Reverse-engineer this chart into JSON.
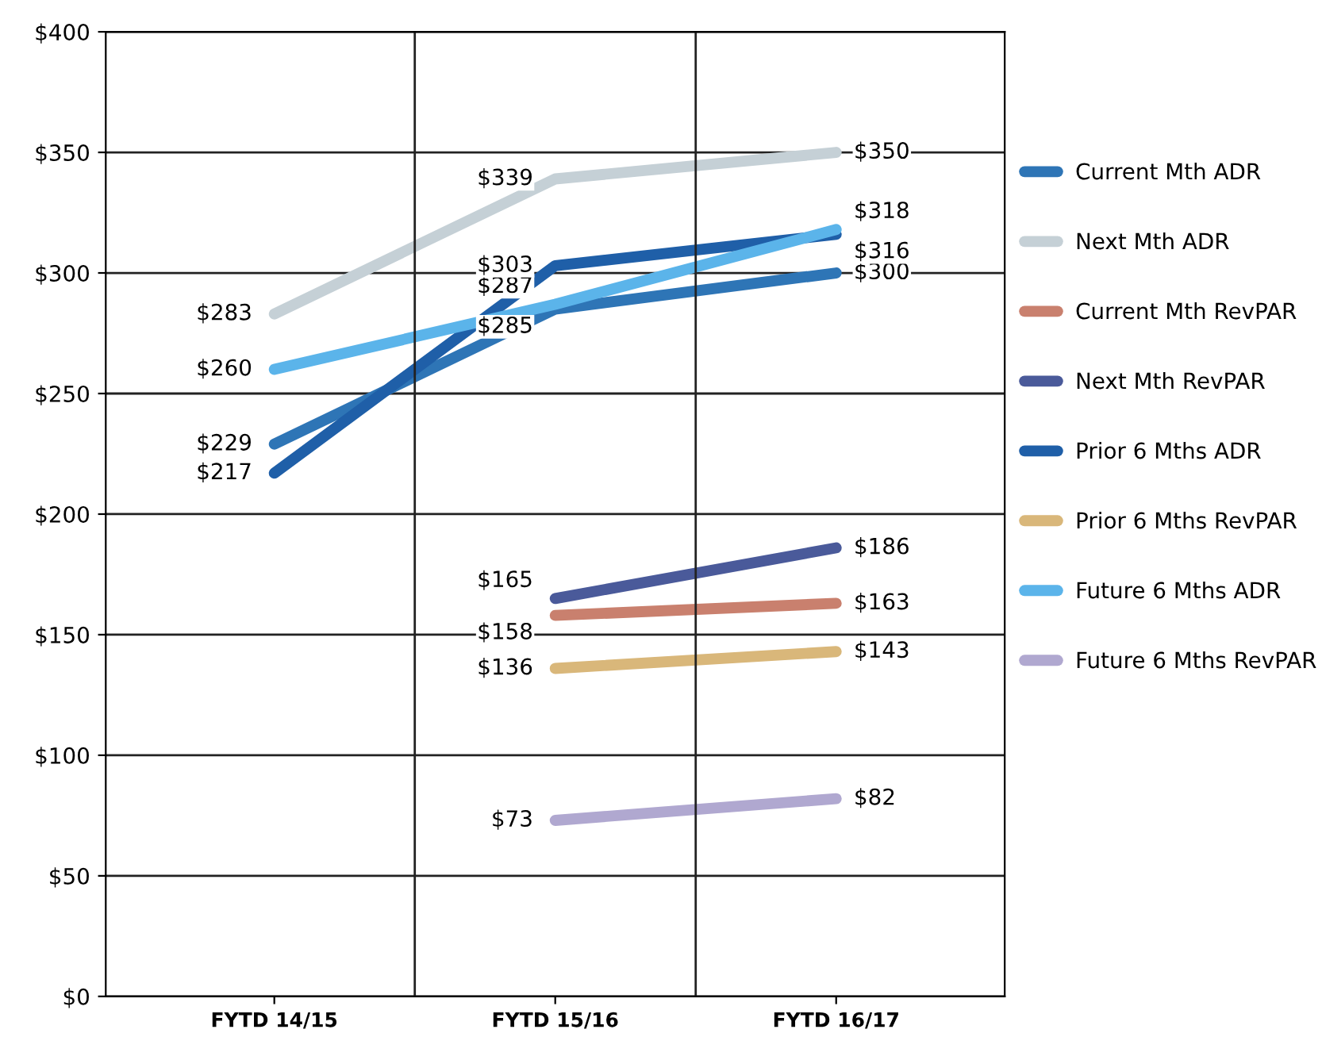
{
  "chart_data": {
    "type": "line",
    "categories": [
      "FYTD 14/15",
      "FYTD 15/16",
      "FYTD 16/17"
    ],
    "series": [
      {
        "name": "Current Mth ADR",
        "color": "#2e75b6",
        "values": [
          229,
          285,
          300
        ],
        "value_labels": [
          "$229",
          "$285",
          "$300"
        ]
      },
      {
        "name": "Next Mth ADR",
        "color": "#c5d0d6",
        "values": [
          283,
          339,
          350
        ],
        "value_labels": [
          "$283",
          "$339",
          "$350"
        ]
      },
      {
        "name": "Current Mth RevPAR",
        "color": "#c9806e",
        "values": [
          null,
          158,
          163
        ],
        "value_labels": [
          null,
          "$158",
          "$163"
        ]
      },
      {
        "name": "Next Mth RevPAR",
        "color": "#4a5a9a",
        "values": [
          null,
          165,
          186
        ],
        "value_labels": [
          null,
          "$165",
          "$186"
        ]
      },
      {
        "name": "Prior 6 Mths ADR",
        "color": "#1f5fa8",
        "values": [
          217,
          303,
          316
        ],
        "value_labels": [
          "$217",
          "$303",
          "$316"
        ]
      },
      {
        "name": "Prior 6 Mths RevPAR",
        "color": "#d9b77a",
        "values": [
          null,
          136,
          143
        ],
        "value_labels": [
          null,
          "$136",
          "$143"
        ]
      },
      {
        "name": "Future 6 Mths ADR",
        "color": "#5bb4ea",
        "values": [
          260,
          287,
          318
        ],
        "value_labels": [
          "$260",
          "$287",
          "$318"
        ]
      },
      {
        "name": "Future 6 Mths RevPAR",
        "color": "#b0a8d0",
        "values": [
          null,
          73,
          82
        ],
        "value_labels": [
          null,
          "$73",
          "$82"
        ]
      }
    ],
    "ylim": [
      0,
      400
    ],
    "yticks": [
      {
        "value": 0,
        "label": "$0"
      },
      {
        "value": 50,
        "label": "$50"
      },
      {
        "value": 100,
        "label": "$100"
      },
      {
        "value": 150,
        "label": "$150"
      },
      {
        "value": 200,
        "label": "$200"
      },
      {
        "value": 250,
        "label": "$250"
      },
      {
        "value": 300,
        "label": "$300"
      },
      {
        "value": 350,
        "label": "$350"
      },
      {
        "value": 400,
        "label": "$400"
      }
    ],
    "grid": true,
    "legend": "right",
    "marker": "none",
    "line_style": "solid"
  }
}
